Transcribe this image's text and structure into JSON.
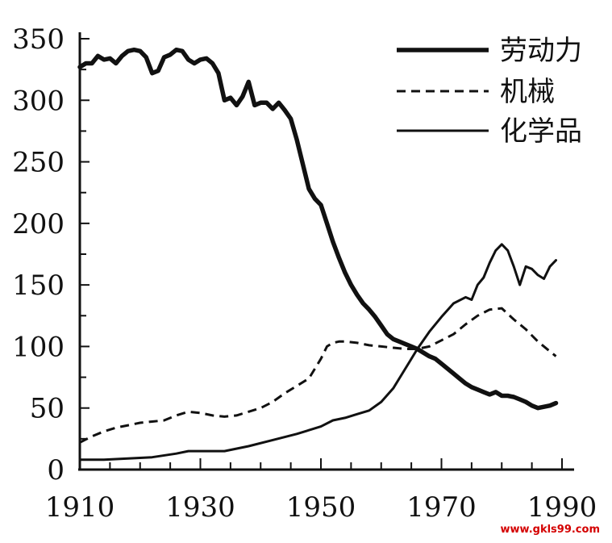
{
  "chart_data": {
    "type": "line",
    "title": "",
    "xlabel": "",
    "ylabel": "",
    "xlim": [
      1910,
      1990
    ],
    "ylim": [
      0,
      350
    ],
    "x_ticks": [
      1910,
      1930,
      1950,
      1970,
      1990
    ],
    "y_ticks": [
      0,
      50,
      100,
      150,
      200,
      250,
      300,
      350
    ],
    "grid": false,
    "legend_position": "top-right",
    "series": [
      {
        "name": "劳动力",
        "style": "thick-solid",
        "color": "#111111",
        "points": [
          [
            1910,
            327
          ],
          [
            1911,
            330
          ],
          [
            1912,
            330
          ],
          [
            1913,
            336
          ],
          [
            1914,
            333
          ],
          [
            1915,
            334
          ],
          [
            1916,
            330
          ],
          [
            1917,
            336
          ],
          [
            1918,
            340
          ],
          [
            1919,
            341
          ],
          [
            1920,
            340
          ],
          [
            1921,
            335
          ],
          [
            1922,
            322
          ],
          [
            1923,
            324
          ],
          [
            1924,
            335
          ],
          [
            1925,
            337
          ],
          [
            1926,
            341
          ],
          [
            1927,
            340
          ],
          [
            1928,
            333
          ],
          [
            1929,
            330
          ],
          [
            1930,
            333
          ],
          [
            1931,
            334
          ],
          [
            1932,
            330
          ],
          [
            1933,
            322
          ],
          [
            1934,
            300
          ],
          [
            1935,
            302
          ],
          [
            1936,
            296
          ],
          [
            1937,
            303
          ],
          [
            1938,
            315
          ],
          [
            1939,
            296
          ],
          [
            1940,
            298
          ],
          [
            1941,
            298
          ],
          [
            1942,
            293
          ],
          [
            1943,
            298
          ],
          [
            1944,
            292
          ],
          [
            1945,
            285
          ],
          [
            1946,
            268
          ],
          [
            1947,
            248
          ],
          [
            1948,
            228
          ],
          [
            1949,
            220
          ],
          [
            1950,
            215
          ],
          [
            1951,
            200
          ],
          [
            1952,
            185
          ],
          [
            1953,
            172
          ],
          [
            1954,
            160
          ],
          [
            1955,
            150
          ],
          [
            1956,
            142
          ],
          [
            1957,
            135
          ],
          [
            1958,
            130
          ],
          [
            1959,
            124
          ],
          [
            1960,
            117
          ],
          [
            1961,
            110
          ],
          [
            1962,
            106
          ],
          [
            1963,
            104
          ],
          [
            1964,
            102
          ],
          [
            1965,
            100
          ],
          [
            1966,
            98
          ],
          [
            1967,
            95
          ],
          [
            1968,
            92
          ],
          [
            1969,
            90
          ],
          [
            1970,
            86
          ],
          [
            1971,
            82
          ],
          [
            1972,
            78
          ],
          [
            1973,
            74
          ],
          [
            1974,
            70
          ],
          [
            1975,
            67
          ],
          [
            1976,
            65
          ],
          [
            1977,
            63
          ],
          [
            1978,
            61
          ],
          [
            1979,
            63
          ],
          [
            1980,
            60
          ],
          [
            1981,
            60
          ],
          [
            1982,
            59
          ],
          [
            1983,
            57
          ],
          [
            1984,
            55
          ],
          [
            1985,
            52
          ],
          [
            1986,
            50
          ],
          [
            1987,
            51
          ],
          [
            1988,
            52
          ],
          [
            1989,
            54
          ]
        ]
      },
      {
        "name": "机械",
        "style": "dashed",
        "color": "#111111",
        "points": [
          [
            1910,
            22
          ],
          [
            1912,
            27
          ],
          [
            1914,
            31
          ],
          [
            1916,
            34
          ],
          [
            1918,
            36
          ],
          [
            1920,
            38
          ],
          [
            1922,
            39
          ],
          [
            1924,
            40
          ],
          [
            1926,
            44
          ],
          [
            1928,
            47
          ],
          [
            1930,
            46
          ],
          [
            1932,
            44
          ],
          [
            1934,
            43
          ],
          [
            1936,
            44
          ],
          [
            1938,
            47
          ],
          [
            1940,
            50
          ],
          [
            1942,
            55
          ],
          [
            1944,
            62
          ],
          [
            1946,
            68
          ],
          [
            1948,
            74
          ],
          [
            1950,
            90
          ],
          [
            1951,
            100
          ],
          [
            1952,
            103
          ],
          [
            1953,
            104
          ],
          [
            1954,
            104
          ],
          [
            1956,
            103
          ],
          [
            1958,
            101
          ],
          [
            1960,
            100
          ],
          [
            1962,
            99
          ],
          [
            1964,
            98
          ],
          [
            1966,
            98
          ],
          [
            1968,
            100
          ],
          [
            1970,
            105
          ],
          [
            1972,
            110
          ],
          [
            1974,
            118
          ],
          [
            1976,
            125
          ],
          [
            1978,
            130
          ],
          [
            1980,
            131
          ],
          [
            1982,
            122
          ],
          [
            1984,
            114
          ],
          [
            1986,
            104
          ],
          [
            1988,
            96
          ],
          [
            1989,
            92
          ]
        ]
      },
      {
        "name": "化学品",
        "style": "thin-solid",
        "color": "#111111",
        "points": [
          [
            1910,
            8
          ],
          [
            1914,
            8
          ],
          [
            1918,
            9
          ],
          [
            1922,
            10
          ],
          [
            1926,
            13
          ],
          [
            1928,
            15
          ],
          [
            1930,
            15
          ],
          [
            1934,
            15
          ],
          [
            1938,
            19
          ],
          [
            1942,
            24
          ],
          [
            1946,
            29
          ],
          [
            1950,
            35
          ],
          [
            1952,
            40
          ],
          [
            1954,
            42
          ],
          [
            1956,
            45
          ],
          [
            1958,
            48
          ],
          [
            1960,
            55
          ],
          [
            1962,
            66
          ],
          [
            1964,
            82
          ],
          [
            1966,
            98
          ],
          [
            1968,
            112
          ],
          [
            1970,
            124
          ],
          [
            1972,
            135
          ],
          [
            1974,
            140
          ],
          [
            1975,
            138
          ],
          [
            1976,
            150
          ],
          [
            1977,
            156
          ],
          [
            1978,
            168
          ],
          [
            1979,
            178
          ],
          [
            1980,
            183
          ],
          [
            1981,
            178
          ],
          [
            1982,
            165
          ],
          [
            1983,
            150
          ],
          [
            1984,
            165
          ],
          [
            1985,
            163
          ],
          [
            1986,
            158
          ],
          [
            1987,
            155
          ],
          [
            1988,
            165
          ],
          [
            1989,
            170
          ]
        ]
      }
    ]
  },
  "watermark": "www.gkls99.com"
}
